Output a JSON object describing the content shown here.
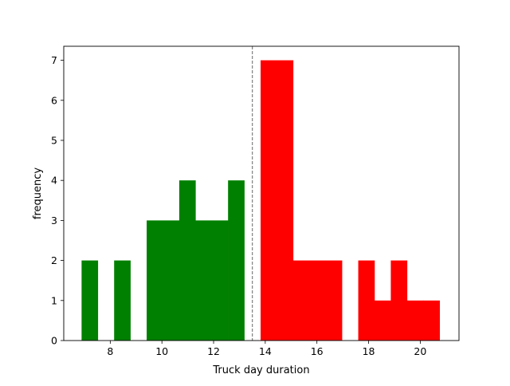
{
  "chart_data": {
    "type": "bar",
    "title": "",
    "xlabel": "Truck day duration",
    "ylabel": "frequency",
    "xlim": [
      6.2,
      21.5
    ],
    "ylim": [
      0,
      7.35
    ],
    "xticks": [
      8,
      10,
      12,
      14,
      16,
      18,
      20
    ],
    "yticks": [
      0,
      1,
      2,
      3,
      4,
      5,
      6,
      7
    ],
    "threshold_line": 13.5,
    "bin_width": 0.63,
    "series": [
      {
        "color": "#008000",
        "bins": [
          {
            "x0": 6.89,
            "count": 2
          },
          {
            "x0": 8.15,
            "count": 2
          },
          {
            "x0": 9.41,
            "count": 3
          },
          {
            "x0": 10.04,
            "count": 3
          },
          {
            "x0": 10.67,
            "count": 4
          },
          {
            "x0": 11.3,
            "count": 3
          },
          {
            "x0": 11.93,
            "count": 3
          },
          {
            "x0": 12.56,
            "count": 4
          }
        ]
      },
      {
        "color": "#ff0000",
        "bins": [
          {
            "x0": 13.82,
            "count": 7
          },
          {
            "x0": 14.45,
            "count": 7
          },
          {
            "x0": 15.08,
            "count": 2
          },
          {
            "x0": 15.71,
            "count": 2
          },
          {
            "x0": 16.34,
            "count": 2
          },
          {
            "x0": 17.6,
            "count": 2
          },
          {
            "x0": 18.23,
            "count": 1
          },
          {
            "x0": 18.86,
            "count": 2
          },
          {
            "x0": 19.49,
            "count": 1
          },
          {
            "x0": 20.12,
            "count": 1
          }
        ]
      }
    ],
    "colors": {
      "axis": "#000000",
      "threshold": "#808080"
    }
  }
}
